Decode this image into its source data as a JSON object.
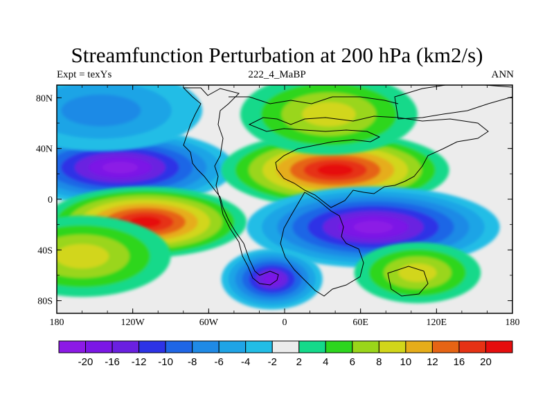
{
  "title": "Streamfunction Perturbation at 200 hPa (km2/s)",
  "left_label": "Expt = texYs",
  "center_label": "222_4_MaBP",
  "right_label": "ANN",
  "chart_data": {
    "type": "heatmap",
    "projection": "cylindrical equidistant",
    "x_range": [
      -180,
      180
    ],
    "y_range": [
      -90,
      90
    ],
    "x_ticks": [
      {
        "value": -180,
        "label": "180"
      },
      {
        "value": -120,
        "label": "120W"
      },
      {
        "value": -60,
        "label": "60W"
      },
      {
        "value": 0,
        "label": "0"
      },
      {
        "value": 60,
        "label": "60E"
      },
      {
        "value": 120,
        "label": "120E"
      },
      {
        "value": 180,
        "label": "180"
      }
    ],
    "y_ticks": [
      {
        "value": 80,
        "label": "80N"
      },
      {
        "value": 40,
        "label": "40N"
      },
      {
        "value": 0,
        "label": "0"
      },
      {
        "value": -40,
        "label": "40S"
      },
      {
        "value": -80,
        "label": "80S"
      }
    ],
    "colorbar": {
      "labels": [
        "-20",
        "-16",
        "-12",
        "-10",
        "-8",
        "-6",
        "-4",
        "-2",
        "2",
        "4",
        "6",
        "8",
        "10",
        "12",
        "16",
        "20"
      ],
      "colors": [
        "#8c1ae6",
        "#7b17e6",
        "#6a20e0",
        "#2d33e6",
        "#1f66e6",
        "#1f8ae6",
        "#1fa4e6",
        "#22bde6",
        "#ececec",
        "#14d98a",
        "#2dd61e",
        "#9ad61a",
        "#d2d61a",
        "#e6ad1a",
        "#e66414",
        "#e63214",
        "#e60d0d"
      ]
    },
    "field": [
      {
        "lon": -130,
        "lat": 25,
        "value": -20,
        "rlon": 45,
        "rlat": 15
      },
      {
        "lon": -110,
        "lat": -18,
        "value": 20,
        "rlon": 40,
        "rlat": 14
      },
      {
        "lon": 40,
        "lat": 23,
        "value": 20,
        "rlon": 45,
        "rlat": 15
      },
      {
        "lon": 70,
        "lat": -22,
        "value": -20,
        "rlon": 50,
        "rlat": 16
      },
      {
        "lon": -10,
        "lat": -63,
        "value": -16,
        "rlon": 20,
        "rlat": 12
      },
      {
        "lon": 35,
        "lat": 67,
        "value": 8,
        "rlon": 35,
        "rlat": 16
      },
      {
        "lon": 105,
        "lat": -58,
        "value": 8,
        "rlon": 25,
        "rlat": 12
      },
      {
        "lon": -145,
        "lat": 70,
        "value": -6,
        "rlon": 40,
        "rlat": 16
      },
      {
        "lon": -160,
        "lat": -45,
        "value": 8,
        "rlon": 35,
        "rlat": 16
      }
    ]
  }
}
